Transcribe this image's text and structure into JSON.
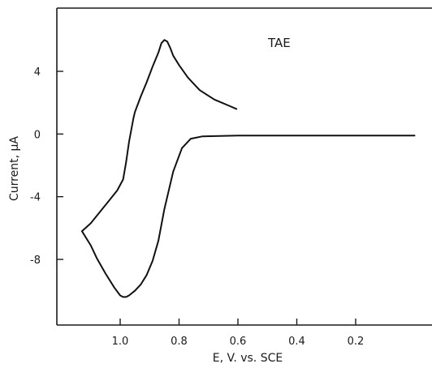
{
  "chart_data": {
    "type": "line",
    "title": "",
    "annotation": "TAE",
    "xlabel": "E, V. vs. SCE",
    "ylabel": "Current, μA",
    "x_reversed": true,
    "xlim": [
      1.2,
      0.0
    ],
    "ylim": [
      -11,
      9
    ],
    "x_ticks": [
      1.0,
      0.8,
      0.6,
      0.4,
      0.2
    ],
    "x_tick_labels": [
      "1.0",
      "0.8",
      "0.6",
      "0.4",
      "0.2"
    ],
    "y_ticks": [
      4,
      0,
      -4,
      -8
    ],
    "y_tick_labels": [
      "4",
      "0",
      "-4",
      "-8"
    ],
    "grid": false,
    "series": [
      {
        "x": [
          0.0,
          0.3,
          0.6,
          0.72,
          0.76,
          0.79,
          0.82,
          0.85,
          0.87,
          0.89,
          0.91,
          0.93,
          0.95,
          0.97,
          0.98,
          0.99,
          1.0,
          1.02,
          1.05,
          1.08,
          1.1,
          1.13,
          1.1,
          1.07,
          1.04,
          1.01,
          0.99,
          0.98,
          0.97,
          0.955,
          0.95,
          0.93,
          0.91,
          0.89,
          0.87,
          0.86,
          0.85,
          0.84,
          0.83,
          0.82,
          0.8,
          0.77,
          0.73,
          0.68,
          0.63,
          0.605
        ],
        "y": [
          -0.1,
          -0.1,
          -0.1,
          -0.15,
          -0.3,
          -0.9,
          -2.4,
          -4.8,
          -6.8,
          -8.1,
          -9.0,
          -9.6,
          -10.0,
          -10.3,
          -10.4,
          -10.4,
          -10.3,
          -9.8,
          -8.9,
          -7.9,
          -7.1,
          -6.2,
          -5.7,
          -5.0,
          -4.3,
          -3.6,
          -2.9,
          -1.8,
          -0.5,
          1.0,
          1.4,
          2.4,
          3.3,
          4.3,
          5.2,
          5.8,
          6.0,
          5.9,
          5.5,
          5.0,
          4.4,
          3.6,
          2.8,
          2.2,
          1.8,
          1.6
        ]
      }
    ]
  }
}
